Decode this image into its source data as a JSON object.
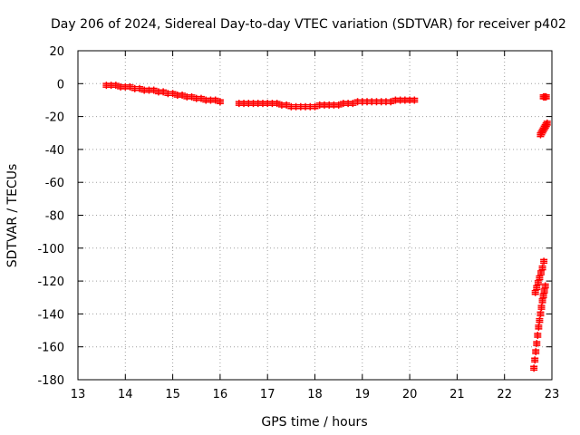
{
  "chart_data": {
    "type": "scatter",
    "title": "Day 206 of 2024, Sidereal Day-to-day VTEC variation (SDTVAR) for receiver p402",
    "xlabel": "GPS time / hours",
    "ylabel": "SDTVAR / TECUs",
    "xlim": [
      13,
      23
    ],
    "ylim": [
      -180,
      20
    ],
    "xticks": [
      13,
      14,
      15,
      16,
      17,
      18,
      19,
      20,
      21,
      22,
      23
    ],
    "yticks": [
      20,
      0,
      -20,
      -40,
      -60,
      -80,
      -100,
      -120,
      -140,
      -160,
      -180
    ],
    "grid": true,
    "marker": "plus",
    "series": [
      {
        "name": "segment-1",
        "color": "#ff0000",
        "x": [
          13.6,
          13.7,
          13.8,
          13.9,
          14.0,
          14.1,
          14.2,
          14.3,
          14.4,
          14.5,
          14.6,
          14.7,
          14.8,
          14.9,
          15.0,
          15.1,
          15.2,
          15.3,
          15.4,
          15.5,
          15.6,
          15.7,
          15.8,
          15.9,
          16.0
        ],
        "y": [
          -1,
          -1,
          -1,
          -2,
          -2,
          -2,
          -3,
          -3,
          -4,
          -4,
          -4,
          -5,
          -5,
          -6,
          -6,
          -7,
          -7,
          -8,
          -8,
          -9,
          -9,
          -10,
          -10,
          -10,
          -11
        ]
      },
      {
        "name": "segment-2",
        "color": "#ff0000",
        "x": [
          16.4,
          16.5,
          16.6,
          16.7,
          16.8,
          16.9,
          17.0,
          17.1,
          17.2,
          17.3,
          17.4,
          17.5,
          17.6,
          17.7,
          17.8,
          17.9,
          18.0,
          18.1,
          18.2,
          18.3,
          18.4,
          18.5,
          18.6,
          18.7,
          18.8,
          18.9,
          19.0,
          19.1,
          19.2,
          19.3,
          19.4,
          19.5,
          19.6,
          19.7,
          19.8,
          19.9,
          20.0,
          20.1
        ],
        "y": [
          -12,
          -12,
          -12,
          -12,
          -12,
          -12,
          -12,
          -12,
          -12,
          -13,
          -13,
          -14,
          -14,
          -14,
          -14,
          -14,
          -14,
          -13,
          -13,
          -13,
          -13,
          -13,
          -12,
          -12,
          -12,
          -11,
          -11,
          -11,
          -11,
          -11,
          -11,
          -11,
          -11,
          -10,
          -10,
          -10,
          -10,
          -10
        ]
      },
      {
        "name": "segment-3",
        "color": "#ff0000",
        "x": [
          22.65,
          22.68,
          22.71,
          22.74,
          22.77,
          22.8,
          22.83
        ],
        "y": [
          -127,
          -124,
          -121,
          -118,
          -115,
          -112,
          -108
        ]
      },
      {
        "name": "segment-4",
        "color": "#ff0000",
        "x": [
          22.62,
          22.64,
          22.66,
          22.68,
          22.7,
          22.72,
          22.74,
          22.76,
          22.78,
          22.8,
          22.82,
          22.84,
          22.86
        ],
        "y": [
          -173,
          -168,
          -163,
          -158,
          -153,
          -148,
          -144,
          -140,
          -136,
          -132,
          -129,
          -126,
          -123
        ]
      },
      {
        "name": "segment-5",
        "color": "#ff0000",
        "x": [
          22.76,
          22.78,
          22.8,
          22.82,
          22.84,
          22.86,
          22.88,
          22.9
        ],
        "y": [
          -31,
          -30,
          -29,
          -28,
          -27,
          -26,
          -25,
          -24
        ]
      },
      {
        "name": "segment-6",
        "color": "#ff0000",
        "x": [
          22.82,
          22.84,
          22.86,
          22.88
        ],
        "y": [
          -8,
          -8,
          -8,
          -8
        ]
      }
    ]
  }
}
